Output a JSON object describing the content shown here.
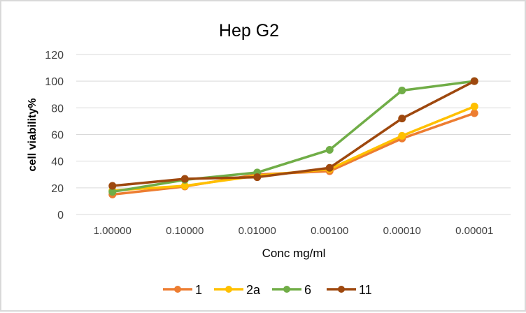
{
  "chart_data": {
    "type": "line",
    "title": "Hep G2",
    "xlabel": "Conc mg/ml",
    "ylabel": "cell viability%",
    "categories": [
      "1.00000",
      "0.10000",
      "0.01000",
      "0.00100",
      "0.00010",
      "0.00001"
    ],
    "ylim": [
      0,
      120
    ],
    "yticks": [
      0,
      20,
      40,
      60,
      80,
      100,
      120
    ],
    "grid": true,
    "legend_position": "bottom",
    "series": [
      {
        "name": "1",
        "color": "#ed7d31",
        "values": [
          15,
          21,
          30,
          32.5,
          57,
          76
        ]
      },
      {
        "name": "2a",
        "color": "#ffc000",
        "values": [
          18,
          21.5,
          29,
          34,
          59,
          81
        ]
      },
      {
        "name": "6",
        "color": "#70ad47",
        "values": [
          17,
          26,
          31.5,
          48.5,
          93,
          100
        ]
      },
      {
        "name": "11",
        "color": "#9e480e",
        "values": [
          21.5,
          26.7,
          28,
          35,
          72,
          100
        ]
      }
    ]
  }
}
